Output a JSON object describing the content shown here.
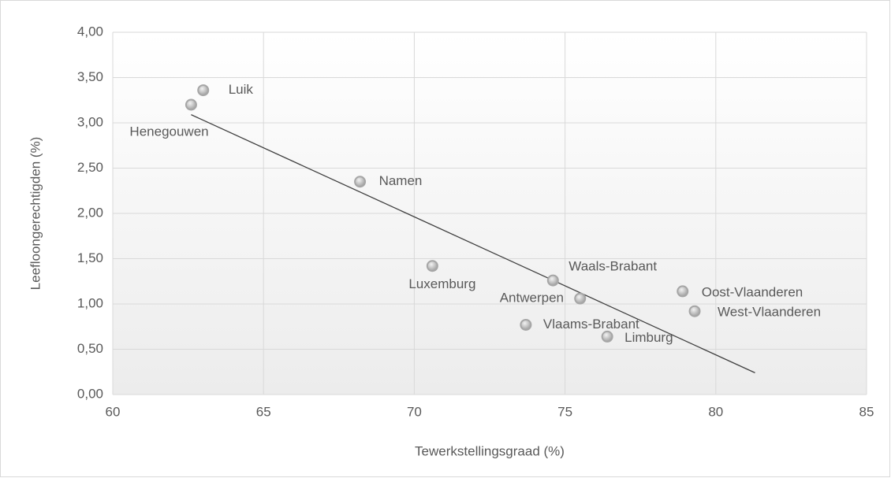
{
  "chart_data": {
    "type": "scatter",
    "x_label": "Tewerkstellingsgraad (%)",
    "y_label": "Leefloongerechtigden (%)",
    "labels": [
      "Luik",
      "Henegouwen",
      "Namen",
      "Luxemburg",
      "Waals-Brabant",
      "Antwerpen",
      "Vlaams-Brabant",
      "Limburg",
      "Oost-Vlaanderen",
      "West-Vlaanderen"
    ],
    "x": [
      63.0,
      62.6,
      68.2,
      70.6,
      74.6,
      75.5,
      73.7,
      76.4,
      78.9,
      79.3
    ],
    "y": [
      3.36,
      3.2,
      2.35,
      1.42,
      1.26,
      1.06,
      0.77,
      0.64,
      1.14,
      0.92
    ],
    "trendline": {
      "x": [
        62.6,
        81.3
      ],
      "y": [
        3.09,
        0.24
      ]
    },
    "xlim": [
      60,
      85
    ],
    "xticks": [
      60,
      65,
      70,
      75,
      80,
      85
    ],
    "ylim": [
      0,
      4
    ],
    "yticks": [
      {
        "value": 0,
        "label": "0,00"
      },
      {
        "value": 0.5,
        "label": "0,50"
      },
      {
        "value": 1,
        "label": "1,00"
      },
      {
        "value": 1.5,
        "label": "1,50"
      },
      {
        "value": 2,
        "label": "2,00"
      },
      {
        "value": 2.5,
        "label": "2,50"
      },
      {
        "value": 3,
        "label": "3,00"
      },
      {
        "value": 3.5,
        "label": "3,50"
      },
      {
        "value": 4,
        "label": "4,00"
      }
    ],
    "grid": true,
    "color": "#a6a6a6"
  }
}
